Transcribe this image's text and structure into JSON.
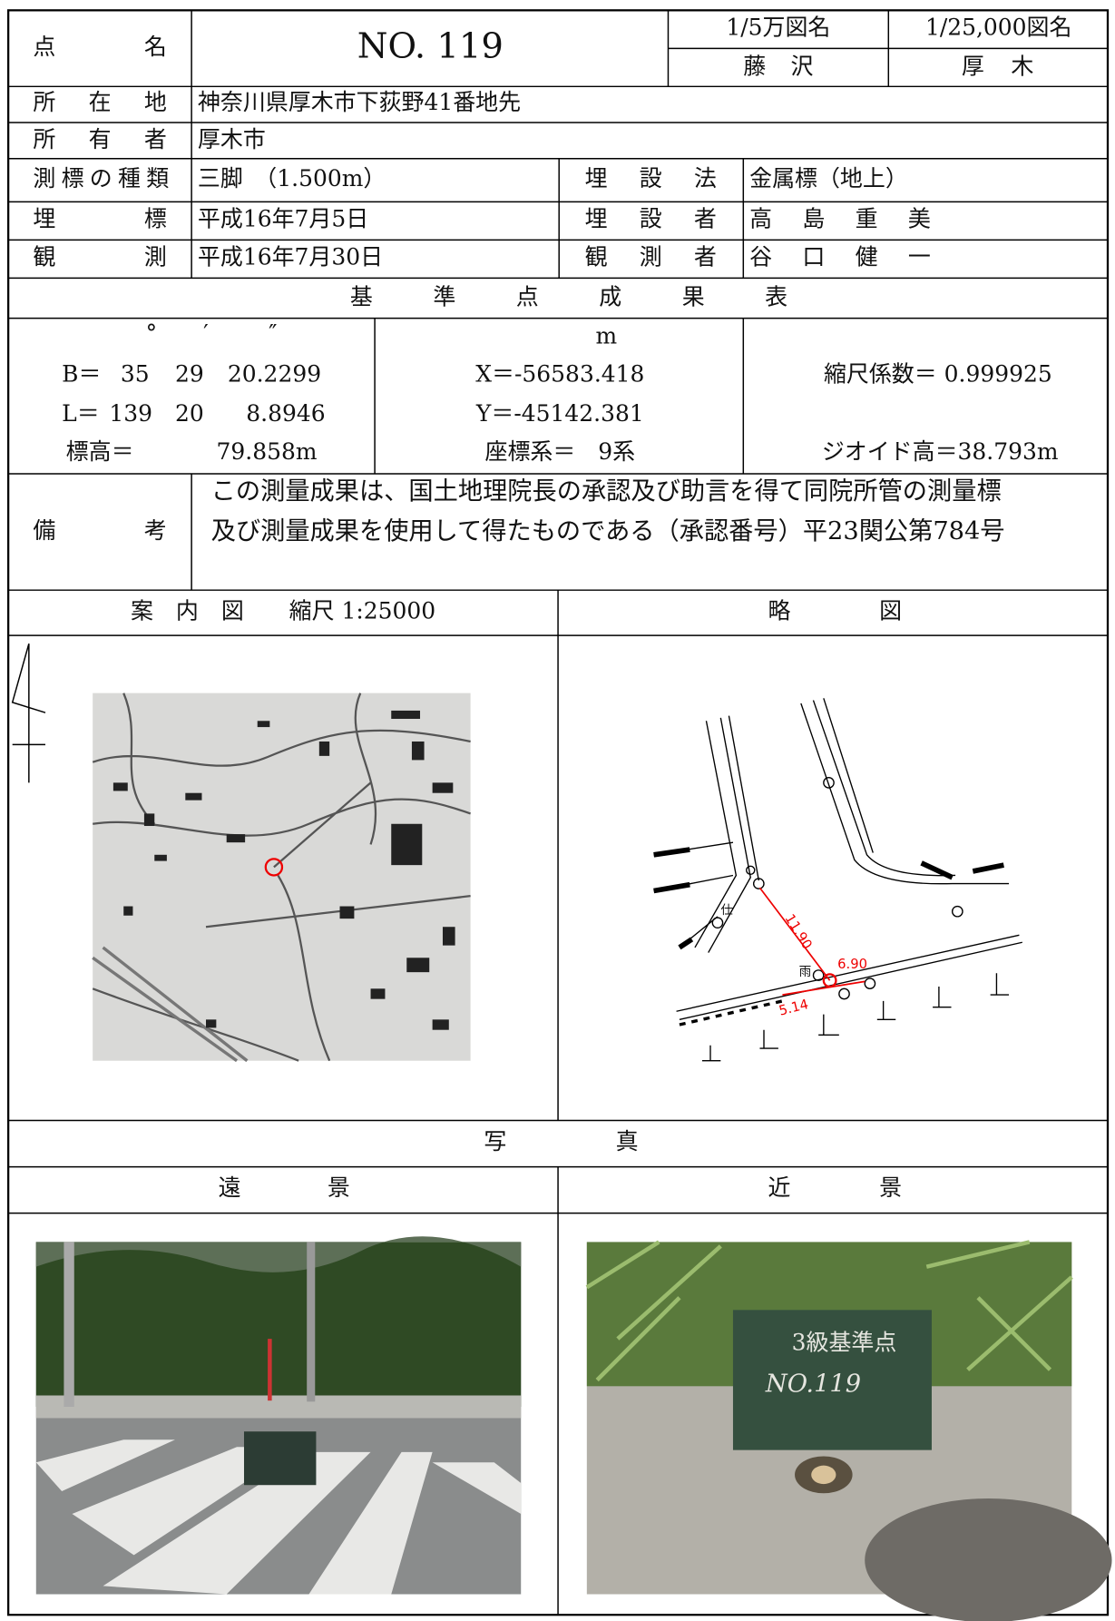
{
  "header": {
    "point_label": "点名",
    "point_value": "NO. 119",
    "map_50k_label": "1/5万図名",
    "map_50k_value": "藤沢",
    "map_25k_label": "1/25,000図名",
    "map_25k_value": "厚木"
  },
  "info": {
    "location_label": "所在地",
    "location_value": "神奈川県厚木市下荻野41番地先",
    "owner_label": "所有者",
    "owner_value": "厚木市",
    "marker_type_label": "測標の種類",
    "marker_type_value": "三脚　（1.500m）",
    "burial_method_label": "埋設法",
    "burial_method_value": "金属標（地上）",
    "burial_label": "埋標",
    "burial_value": "平成16年7月5日",
    "burier_label": "埋設者",
    "burier_value": "高島重美",
    "observation_label": "観測",
    "observation_value": "平成16年7月30日",
    "observer_label": "観測者",
    "observer_value": "谷口健一"
  },
  "results": {
    "title": "基準点成果表",
    "deg_unit": "°",
    "min_unit": "′",
    "sec_unit": "″",
    "lat": {
      "label": "B＝",
      "deg": "35",
      "min": "29",
      "sec": "20.2299"
    },
    "lon": {
      "label": "L＝",
      "deg": "139",
      "min": "20",
      "sec": "8.8946"
    },
    "height_label": "標高＝",
    "height_value": "79.858m",
    "xy_unit": "m",
    "x": "X＝-56583.418",
    "y": "Y＝-45142.381",
    "coord_system": "座標系＝　9系",
    "scale_factor": "縮尺係数＝ 0.999925",
    "geoid_height": "ジオイド高＝38.793m"
  },
  "remarks": {
    "label": "備考",
    "lines": [
      "この測量成果は、国土地理院長の承認及び助言を得て同院所管の測量標",
      "及び測量成果を使用して得たものである（承認番号）平23関公第784号"
    ]
  },
  "maps": {
    "guide_title": "案　内　図　　縮尺 1:25000",
    "sketch_title": "略図",
    "sketch_labels": [
      "11.90",
      "6.90",
      "5.14",
      "雨",
      "仕"
    ]
  },
  "photos": {
    "title": "写真",
    "far_title": "遠景",
    "near_title": "近景",
    "board_lines": [
      "3級基準点",
      "NO.119"
    ]
  }
}
